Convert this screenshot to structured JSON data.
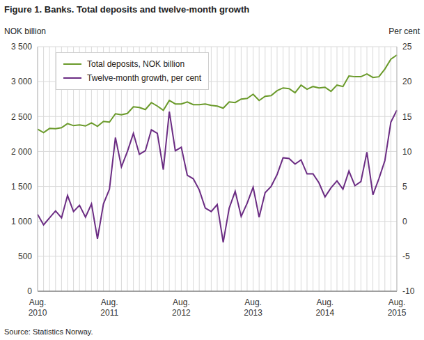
{
  "chart_data": {
    "type": "line",
    "title": "Figure 1. Banks. Total deposits and twelve-month growth",
    "source": "Source: Statistics Norway.",
    "ylabel": "NOK billion",
    "y2label": "Per cent",
    "categories": [
      "Aug. 2010",
      null,
      null,
      null,
      null,
      null,
      null,
      null,
      null,
      null,
      null,
      null,
      "Aug. 2011",
      null,
      null,
      null,
      null,
      null,
      null,
      null,
      null,
      null,
      null,
      null,
      "Aug. 2012",
      null,
      null,
      null,
      null,
      null,
      null,
      null,
      null,
      null,
      null,
      null,
      "Aug. 2013",
      null,
      null,
      null,
      null,
      null,
      null,
      null,
      null,
      null,
      null,
      null,
      "Aug. 2014",
      null,
      null,
      null,
      null,
      null,
      null,
      null,
      null,
      null,
      null,
      null,
      "Aug. 2015"
    ],
    "series": [
      {
        "name": "Total deposits, NOK billion",
        "color": "#6a9a2a",
        "values": [
          2320,
          2270,
          2330,
          2325,
          2340,
          2400,
          2370,
          2380,
          2365,
          2410,
          2360,
          2430,
          2420,
          2540,
          2525,
          2545,
          2640,
          2630,
          2600,
          2700,
          2650,
          2590,
          2730,
          2680,
          2680,
          2710,
          2670,
          2670,
          2680,
          2660,
          2650,
          2620,
          2710,
          2700,
          2750,
          2760,
          2820,
          2730,
          2790,
          2800,
          2870,
          2910,
          2900,
          2840,
          2950,
          2890,
          2930,
          2910,
          2920,
          2860,
          2950,
          2930,
          3080,
          3070,
          3070,
          3110,
          3060,
          3070,
          3180,
          3320,
          3380
        ]
      },
      {
        "name": "Twelve-month growth, per cent",
        "color": "#6b2c83",
        "axis": "y2",
        "values": [
          1.0,
          -0.5,
          0.5,
          1.5,
          0.5,
          3.7,
          1.4,
          2.3,
          0.6,
          2.5,
          -2.5,
          2.5,
          4.6,
          12,
          7.8,
          10,
          12.6,
          9.6,
          10.1,
          13.1,
          12.6,
          7.4,
          15.7,
          10.1,
          10.6,
          6.6,
          6.1,
          4.5,
          1.9,
          1.4,
          2.4,
          -3,
          1.9,
          4.3,
          0.7,
          2.6,
          4.9,
          0.6,
          4.1,
          5,
          6.7,
          9.1,
          9,
          8.2,
          8.8,
          6.8,
          6.8,
          5.5,
          3.5,
          4.8,
          5.8,
          4.6,
          7.2,
          5.1,
          5.7,
          9.9,
          3.8,
          6.1,
          8.7,
          14.2,
          15.9
        ]
      }
    ],
    "ylim": [
      0,
      3500
    ],
    "yticks": [
      0,
      500,
      {
        "value": 1000,
        "label": "1 000"
      },
      {
        "value": 1500,
        "label": "1 500"
      },
      {
        "value": 2000,
        "label": "2 000"
      },
      {
        "value": 2500,
        "label": "2 500"
      },
      {
        "value": 3000,
        "label": "3 000"
      },
      {
        "value": 3500,
        "label": "3 500"
      }
    ],
    "y2lim": [
      -10,
      25
    ],
    "y2ticks": [
      -10,
      -5,
      0,
      5,
      10,
      15,
      20,
      25
    ],
    "grid": true,
    "legend": "upper left"
  }
}
